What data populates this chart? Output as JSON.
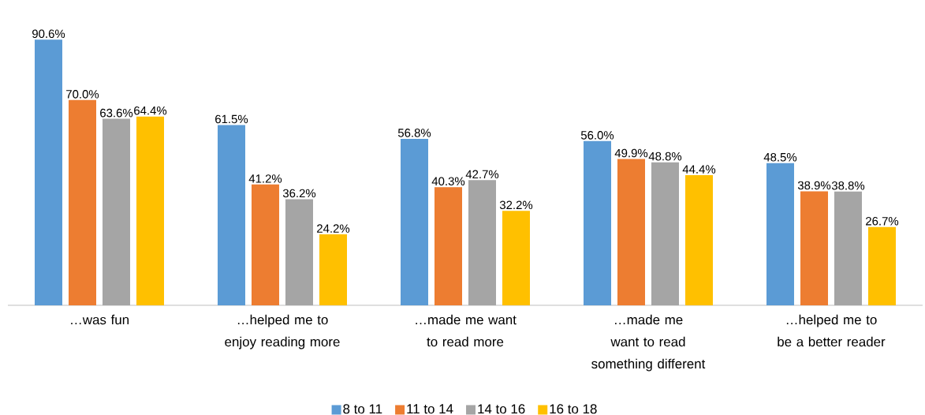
{
  "chart_data": {
    "type": "bar",
    "categories": [
      "…was fun",
      "…helped me to enjoy reading more",
      "…made me want to read more",
      "…made me want to read something different",
      "…helped me to be a better reader"
    ],
    "series": [
      {
        "name": "8 to 11",
        "color": "#5b9bd5",
        "values": [
          90.6,
          61.5,
          56.8,
          56.0,
          48.5
        ],
        "value_labels": [
          "90.6%",
          "61.5%",
          "56.8%",
          "56.0%",
          "48.5%"
        ]
      },
      {
        "name": "11 to 14",
        "color": "#ed7d31",
        "values": [
          70.0,
          41.2,
          40.3,
          49.9,
          38.9
        ],
        "value_labels": [
          "70.0%",
          "41.2%",
          "40.3%",
          "49.9%",
          "38.9%"
        ]
      },
      {
        "name": "14 to 16",
        "color": "#a5a5a5",
        "values": [
          63.6,
          36.2,
          42.7,
          48.8,
          38.8
        ],
        "value_labels": [
          "63.6%",
          "36.2%",
          "42.7%",
          "48.8%",
          "38.8%"
        ]
      },
      {
        "name": "16 to 18",
        "color": "#ffc000",
        "values": [
          64.4,
          24.2,
          32.2,
          44.4,
          26.7
        ],
        "value_labels": [
          "64.4%",
          "24.2%",
          "32.2%",
          "44.4%",
          "26.7%"
        ]
      }
    ],
    "legend": "bottom"
  }
}
